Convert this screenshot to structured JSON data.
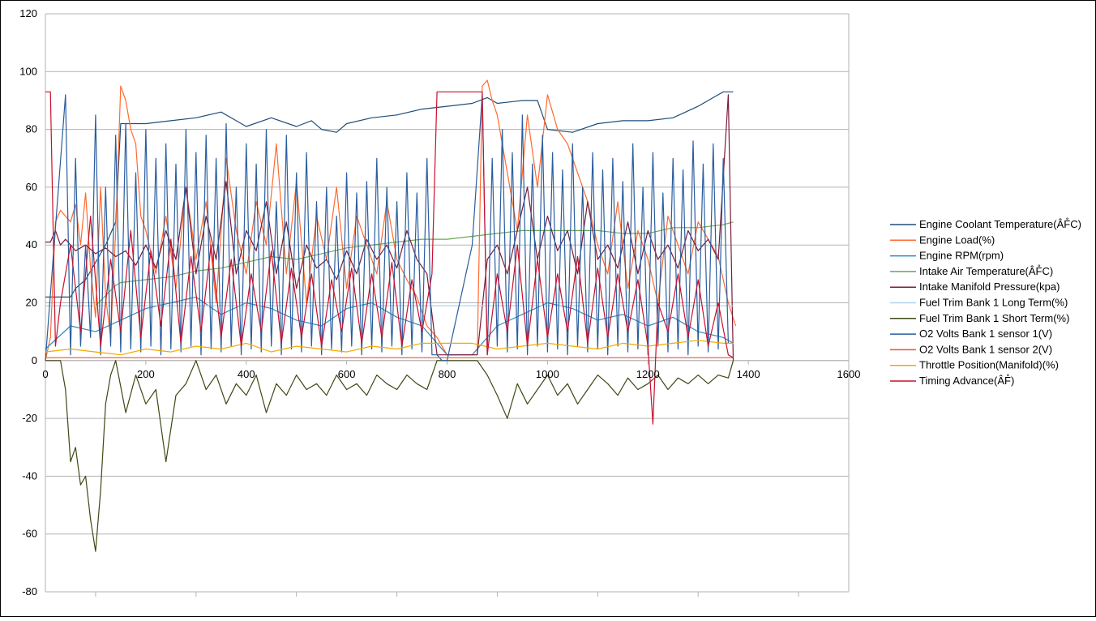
{
  "chart_data": {
    "type": "line",
    "title": "",
    "xlabel": "",
    "ylabel": "",
    "xlim": [
      0,
      1600
    ],
    "ylim": [
      -80,
      120
    ],
    "x_ticks": [
      0,
      200,
      400,
      600,
      800,
      1000,
      1200,
      1400,
      1600
    ],
    "y_ticks": [
      -80,
      -60,
      -40,
      -20,
      0,
      20,
      40,
      60,
      80,
      100,
      120
    ],
    "grid": true,
    "legend_position": "right",
    "series": [
      {
        "name": "Engine Coolant Temperature(ÂF̊C)",
        "color": "#1f4e79",
        "x": [
          0,
          50,
          60,
          80,
          100,
          120,
          140,
          150,
          160,
          200,
          250,
          300,
          350,
          380,
          400,
          450,
          500,
          530,
          550,
          580,
          600,
          650,
          700,
          750,
          800,
          850,
          880,
          900,
          950,
          980,
          1000,
          1050,
          1100,
          1150,
          1200,
          1250,
          1300,
          1330,
          1350,
          1370
        ],
        "y": [
          22,
          22,
          25,
          28,
          34,
          40,
          48,
          82,
          82,
          82,
          83,
          84,
          86,
          83,
          81,
          84,
          81,
          83,
          80,
          79,
          82,
          84,
          85,
          87,
          88,
          89,
          91,
          89,
          90,
          90,
          80,
          79,
          82,
          83,
          83,
          84,
          88,
          91,
          93,
          93
        ]
      },
      {
        "name": "Engine Load(%)",
        "color": "#ff6a2f",
        "x": [
          0,
          10,
          20,
          30,
          40,
          50,
          60,
          70,
          80,
          90,
          100,
          110,
          120,
          130,
          140,
          150,
          160,
          170,
          180,
          190,
          200,
          220,
          240,
          260,
          280,
          300,
          320,
          340,
          360,
          380,
          400,
          420,
          440,
          460,
          480,
          500,
          520,
          540,
          560,
          580,
          600,
          620,
          640,
          660,
          680,
          700,
          720,
          740,
          760,
          780,
          800,
          820,
          840,
          860,
          870,
          880,
          890,
          900,
          920,
          940,
          960,
          980,
          1000,
          1020,
          1040,
          1060,
          1080,
          1100,
          1120,
          1140,
          1160,
          1180,
          1200,
          1220,
          1240,
          1260,
          1280,
          1300,
          1320,
          1340,
          1360,
          1375
        ],
        "y": [
          0,
          8,
          48,
          52,
          50,
          48,
          54,
          40,
          58,
          32,
          15,
          60,
          22,
          8,
          45,
          95,
          90,
          80,
          75,
          50,
          45,
          30,
          50,
          25,
          60,
          35,
          55,
          20,
          70,
          45,
          30,
          55,
          40,
          75,
          30,
          62,
          20,
          50,
          35,
          60,
          25,
          50,
          40,
          30,
          55,
          35,
          28,
          22,
          12,
          8,
          2,
          2,
          2,
          2,
          95,
          97,
          90,
          85,
          65,
          45,
          85,
          60,
          92,
          80,
          75,
          65,
          55,
          40,
          30,
          55,
          25,
          45,
          35,
          20,
          50,
          40,
          30,
          48,
          42,
          36,
          20,
          12
        ]
      },
      {
        "name": "Engine RPM(rpm)",
        "color": "#2e8bc0",
        "x": [
          0,
          50,
          100,
          150,
          200,
          250,
          300,
          350,
          400,
          450,
          500,
          550,
          600,
          650,
          700,
          750,
          800,
          850,
          900,
          950,
          1000,
          1050,
          1100,
          1150,
          1200,
          1250,
          1300,
          1350,
          1370
        ],
        "y": [
          4,
          12,
          10,
          14,
          18,
          20,
          22,
          16,
          20,
          18,
          14,
          12,
          18,
          20,
          15,
          12,
          2,
          2,
          12,
          16,
          20,
          18,
          14,
          16,
          12,
          15,
          10,
          8,
          6
        ]
      },
      {
        "name": "Intake Air Temperature(ÂF̊C)",
        "color": "#6aa84f",
        "x": [
          0,
          100,
          140,
          150,
          200,
          250,
          300,
          350,
          400,
          450,
          500,
          550,
          600,
          650,
          700,
          750,
          800,
          850,
          900,
          950,
          1000,
          1050,
          1100,
          1150,
          1200,
          1250,
          1300,
          1350,
          1370
        ],
        "y": [
          19,
          19,
          26,
          27,
          28,
          29,
          31,
          32,
          34,
          36,
          35,
          37,
          39,
          40,
          41,
          42,
          42,
          43,
          44,
          45,
          45,
          45,
          45,
          44,
          44,
          46,
          46,
          47,
          48
        ]
      },
      {
        "name": "Intake Manifold Pressure(kpa)",
        "color": "#7b1c3a",
        "x": [
          0,
          10,
          20,
          30,
          40,
          60,
          80,
          100,
          120,
          140,
          160,
          180,
          200,
          220,
          240,
          260,
          280,
          300,
          320,
          340,
          360,
          380,
          400,
          420,
          440,
          460,
          480,
          500,
          520,
          540,
          560,
          580,
          600,
          620,
          640,
          660,
          680,
          700,
          720,
          740,
          760,
          780,
          800,
          820,
          840,
          860,
          880,
          900,
          920,
          940,
          960,
          980,
          1000,
          1020,
          1040,
          1060,
          1080,
          1100,
          1120,
          1140,
          1160,
          1180,
          1200,
          1220,
          1240,
          1260,
          1280,
          1300,
          1320,
          1340,
          1360,
          1370
        ],
        "y": [
          41,
          41,
          45,
          40,
          42,
          38,
          40,
          37,
          39,
          36,
          38,
          33,
          40,
          32,
          45,
          35,
          60,
          30,
          50,
          35,
          62,
          30,
          45,
          38,
          55,
          30,
          48,
          25,
          40,
          32,
          35,
          28,
          38,
          30,
          42,
          35,
          40,
          32,
          45,
          35,
          30,
          2,
          2,
          2,
          2,
          2,
          35,
          40,
          30,
          45,
          60,
          35,
          50,
          38,
          45,
          30,
          55,
          35,
          40,
          32,
          48,
          30,
          45,
          35,
          40,
          32,
          45,
          38,
          42,
          35,
          92,
          0
        ]
      },
      {
        "name": "Fuel Trim Bank 1 Long Term(%)",
        "color": "#a9d7f0",
        "x": [
          0,
          100,
          200,
          300,
          400,
          500,
          600,
          700,
          800,
          900,
          1000,
          1100,
          1200,
          1300,
          1370
        ],
        "y": [
          19,
          19,
          19,
          19,
          19,
          19,
          19,
          19,
          19,
          19,
          19,
          19,
          19,
          19,
          19
        ]
      },
      {
        "name": "Fuel Trim Bank 1 Short Term(%)",
        "color": "#3b4a14",
        "x": [
          0,
          20,
          30,
          40,
          50,
          60,
          70,
          80,
          90,
          100,
          110,
          120,
          130,
          140,
          160,
          180,
          200,
          220,
          240,
          260,
          280,
          300,
          320,
          340,
          360,
          380,
          400,
          420,
          440,
          460,
          480,
          500,
          520,
          540,
          560,
          580,
          600,
          620,
          640,
          660,
          680,
          700,
          720,
          740,
          760,
          780,
          800,
          820,
          840,
          860,
          880,
          900,
          920,
          940,
          960,
          980,
          1000,
          1020,
          1040,
          1060,
          1080,
          1100,
          1120,
          1140,
          1160,
          1180,
          1200,
          1220,
          1240,
          1260,
          1280,
          1300,
          1320,
          1340,
          1360,
          1370
        ],
        "y": [
          0,
          0,
          0,
          -10,
          -35,
          -30,
          -43,
          -40,
          -55,
          -66,
          -45,
          -15,
          -5,
          0,
          -18,
          -5,
          -15,
          -10,
          -35,
          -12,
          -8,
          0,
          -10,
          -5,
          -15,
          -8,
          -12,
          -5,
          -18,
          -8,
          -12,
          -5,
          -10,
          -8,
          -12,
          -5,
          -10,
          -8,
          -12,
          -5,
          -8,
          -10,
          -5,
          -8,
          -10,
          0,
          0,
          0,
          0,
          0,
          -5,
          -12,
          -20,
          -8,
          -15,
          -10,
          -5,
          -12,
          -8,
          -15,
          -10,
          -5,
          -8,
          -12,
          -6,
          -10,
          -8,
          -5,
          -10,
          -6,
          -8,
          -5,
          -8,
          -5,
          -6,
          0
        ]
      },
      {
        "name": "O2 Volts Bank 1 sensor 1(V)",
        "color": "#2a5d9f",
        "x": [
          0,
          40,
          50,
          60,
          70,
          80,
          90,
          100,
          110,
          120,
          130,
          140,
          150,
          160,
          170,
          180,
          190,
          200,
          210,
          220,
          230,
          240,
          250,
          260,
          270,
          280,
          290,
          300,
          310,
          320,
          330,
          340,
          350,
          360,
          370,
          380,
          390,
          400,
          410,
          420,
          430,
          440,
          450,
          460,
          470,
          480,
          490,
          500,
          510,
          520,
          530,
          540,
          550,
          560,
          570,
          580,
          590,
          600,
          610,
          620,
          630,
          640,
          650,
          660,
          670,
          680,
          690,
          700,
          710,
          720,
          730,
          740,
          750,
          760,
          770,
          780,
          790,
          800,
          850,
          870,
          880,
          890,
          900,
          910,
          920,
          930,
          940,
          950,
          960,
          970,
          980,
          990,
          1000,
          1010,
          1020,
          1030,
          1040,
          1050,
          1060,
          1070,
          1080,
          1090,
          1100,
          1110,
          1120,
          1130,
          1140,
          1150,
          1160,
          1170,
          1180,
          1190,
          1200,
          1210,
          1220,
          1230,
          1240,
          1250,
          1260,
          1270,
          1280,
          1290,
          1300,
          1310,
          1320,
          1330,
          1340,
          1350,
          1360
        ],
        "y": [
          0,
          92,
          2,
          70,
          5,
          40,
          8,
          85,
          2,
          60,
          5,
          78,
          3,
          82,
          4,
          65,
          3,
          80,
          5,
          70,
          2,
          75,
          4,
          68,
          3,
          80,
          5,
          72,
          2,
          78,
          4,
          70,
          3,
          82,
          5,
          60,
          2,
          75,
          4,
          68,
          3,
          80,
          5,
          55,
          2,
          78,
          4,
          65,
          3,
          72,
          5,
          55,
          2,
          60,
          4,
          50,
          3,
          65,
          5,
          58,
          2,
          62,
          4,
          70,
          3,
          60,
          5,
          55,
          2,
          65,
          4,
          58,
          3,
          70,
          2,
          2,
          0,
          0,
          40,
          92,
          2,
          70,
          5,
          80,
          3,
          72,
          4,
          85,
          2,
          68,
          5,
          78,
          3,
          72,
          4,
          66,
          2,
          75,
          5,
          60,
          3,
          72,
          4,
          66,
          2,
          70,
          5,
          62,
          3,
          75,
          4,
          60,
          2,
          72,
          5,
          58,
          3,
          70,
          4,
          66,
          2,
          76,
          5,
          68,
          3,
          75,
          4,
          70,
          6
        ]
      },
      {
        "name": "O2 Volts Bank 1 sensor 2(V)",
        "color": "#e2553b",
        "x": [
          0,
          100,
          200,
          300,
          400,
          500,
          600,
          700,
          800,
          900,
          1000,
          1100,
          1200,
          1300,
          1370
        ],
        "y": [
          1,
          1,
          1,
          1,
          1,
          1,
          1,
          1,
          1,
          1,
          1,
          1,
          1,
          1,
          1
        ]
      },
      {
        "name": "Throttle Position(Manifold)(%)",
        "color": "#f4a900",
        "x": [
          0,
          50,
          100,
          150,
          200,
          250,
          300,
          350,
          400,
          450,
          500,
          550,
          600,
          650,
          700,
          750,
          800,
          850,
          900,
          950,
          1000,
          1050,
          1100,
          1150,
          1200,
          1250,
          1300,
          1350,
          1370
        ],
        "y": [
          3,
          4,
          3,
          2,
          4,
          3,
          5,
          4,
          6,
          3,
          5,
          4,
          3,
          5,
          4,
          6,
          6,
          6,
          4,
          5,
          6,
          5,
          4,
          6,
          5,
          6,
          7,
          6,
          6
        ]
      },
      {
        "name": "Timing Advance(ÂF̊)",
        "color": "#c8102e",
        "x": [
          0,
          10,
          20,
          30,
          50,
          70,
          90,
          110,
          130,
          150,
          170,
          190,
          210,
          230,
          250,
          270,
          290,
          310,
          330,
          350,
          370,
          390,
          410,
          430,
          450,
          470,
          490,
          510,
          530,
          550,
          570,
          590,
          610,
          630,
          650,
          670,
          690,
          710,
          730,
          750,
          770,
          780,
          790,
          800,
          850,
          870,
          880,
          900,
          920,
          940,
          960,
          980,
          1000,
          1020,
          1040,
          1060,
          1080,
          1100,
          1120,
          1140,
          1160,
          1180,
          1200,
          1210,
          1220,
          1240,
          1260,
          1280,
          1300,
          1320,
          1340,
          1360,
          1370
        ],
        "y": [
          93,
          93,
          5,
          20,
          40,
          10,
          50,
          5,
          35,
          10,
          45,
          8,
          38,
          12,
          42,
          6,
          36,
          10,
          40,
          8,
          35,
          5,
          30,
          10,
          38,
          6,
          32,
          8,
          30,
          5,
          28,
          10,
          32,
          6,
          30,
          8,
          34,
          5,
          28,
          10,
          30,
          93,
          93,
          93,
          93,
          93,
          2,
          30,
          10,
          40,
          5,
          35,
          8,
          30,
          10,
          36,
          6,
          32,
          8,
          30,
          10,
          28,
          5,
          -22,
          20,
          10,
          30,
          8,
          28,
          5,
          20,
          2,
          1
        ]
      }
    ]
  }
}
